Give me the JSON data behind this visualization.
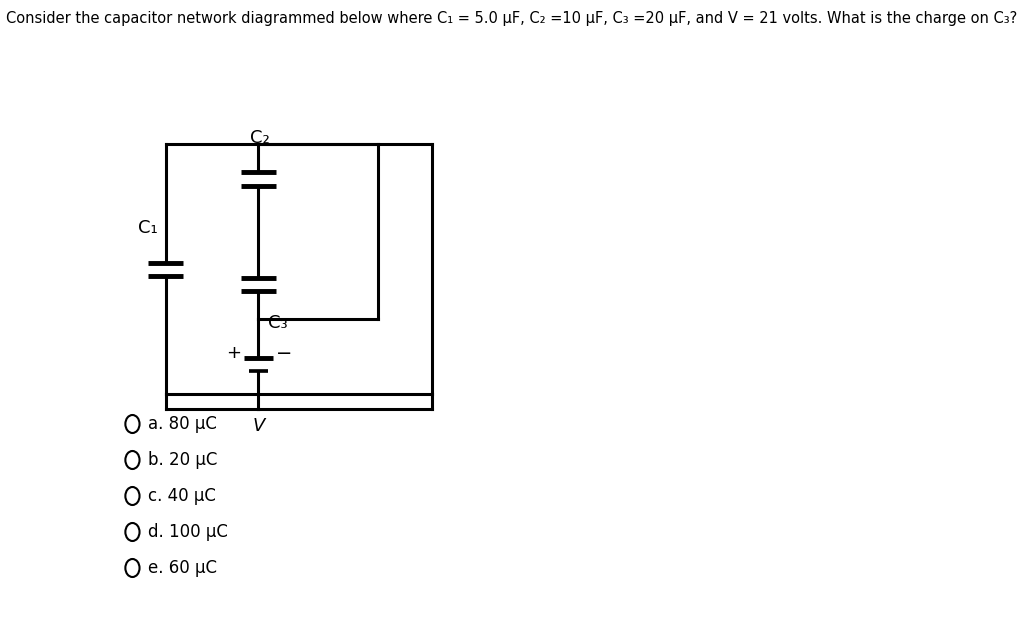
{
  "title": "Consider the capacitor network diagrammed below where C₁ = 5.0 μF, C₂ =10 μF, C₃ =20 μF, and V = 21 volts. What is the charge on C₃?",
  "title_fontsize": 10.5,
  "options": [
    "a. 80 μC",
    "b. 20 μC",
    "c. 40 μC",
    "d. 100 μC",
    "e. 60 μC"
  ],
  "bg_color": "#ffffff",
  "line_color": "#000000",
  "lw": 2.2
}
